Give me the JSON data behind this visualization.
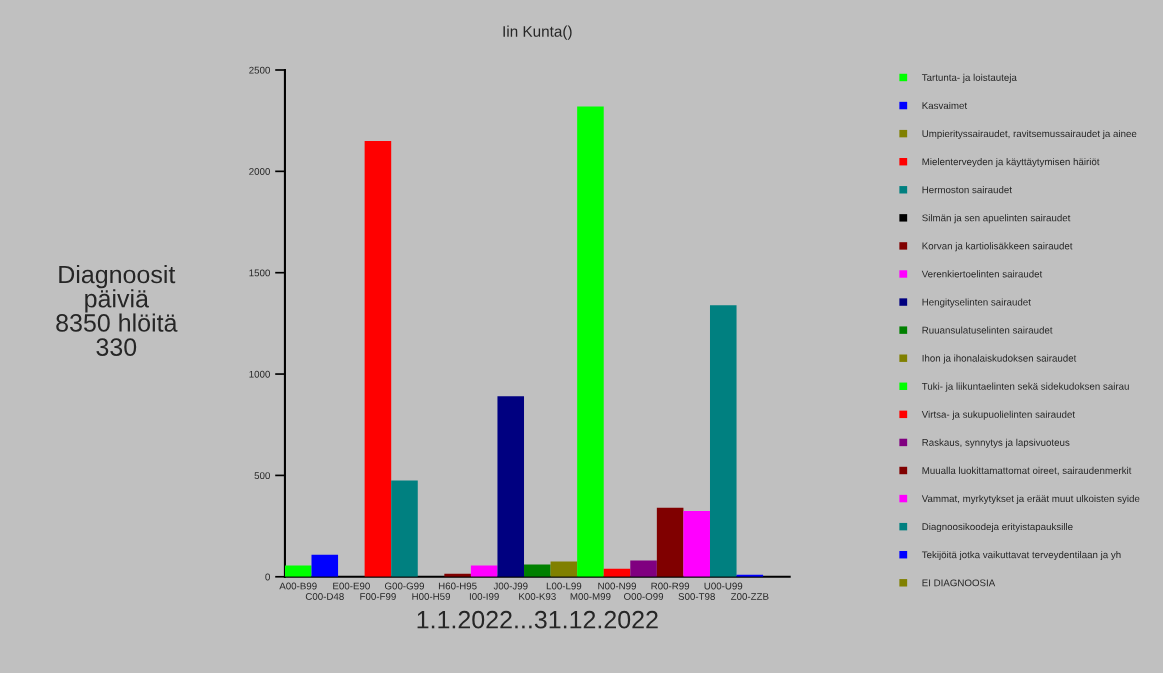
{
  "chart_data": {
    "type": "bar",
    "title": "Iin Kunta()",
    "xlabel": "1.1.2022...31.12.2022",
    "annotations": [
      "Diagnoosit\npäiviä\n8350 hlöitä\n330"
    ],
    "categories": [
      "A00-B99",
      "C00-D48",
      "E00-E90",
      "F00-F99",
      "G00-G99",
      "H00-H59",
      "H60-H95",
      "I00-I99",
      "J00-J99",
      "K00-K93",
      "L00-L99",
      "M00-M99",
      "N00-N99",
      "O00-O99",
      "R00-R99",
      "S00-T98",
      "U00-U99",
      "Z00-ZZB",
      null
    ],
    "series": [
      {
        "name": "Tartunta- ja loistauteja",
        "color": "#00ff00",
        "values": [
          55,
          null,
          null,
          null,
          null,
          null,
          null,
          null,
          null,
          null,
          null,
          null,
          null,
          null,
          null,
          null,
          null,
          null,
          null
        ]
      },
      {
        "name": "Kasvaimet",
        "color": "#0000ff",
        "values": [
          null,
          108,
          null,
          null,
          null,
          null,
          null,
          null,
          null,
          null,
          null,
          null,
          null,
          null,
          null,
          null,
          null,
          null,
          null
        ]
      },
      {
        "name": "Umpierityssairaudet, ravitsemussairaudet ja ainee",
        "color": "#808000",
        "values": [
          null,
          null,
          0,
          null,
          null,
          null,
          null,
          null,
          null,
          null,
          null,
          null,
          null,
          null,
          null,
          null,
          null,
          null,
          null
        ]
      },
      {
        "name": "Mielenterveyden ja käyttäytymisen häiriöt",
        "color": "#ff0000",
        "values": [
          null,
          null,
          null,
          2150,
          null,
          null,
          null,
          null,
          null,
          null,
          null,
          null,
          null,
          null,
          null,
          null,
          null,
          null,
          null
        ]
      },
      {
        "name": "Hermoston sairaudet",
        "color": "#008080",
        "values": [
          null,
          null,
          null,
          null,
          475,
          null,
          null,
          null,
          null,
          null,
          null,
          null,
          null,
          null,
          null,
          null,
          null,
          null,
          null
        ]
      },
      {
        "name": "Silmän ja sen apuelinten sairaudet",
        "color": "#000000",
        "values": [
          null,
          null,
          null,
          null,
          null,
          0,
          null,
          null,
          null,
          null,
          null,
          null,
          null,
          null,
          null,
          null,
          null,
          null,
          null
        ]
      },
      {
        "name": "Korvan ja kartiolisäkkeen sairaudet",
        "color": "#800000",
        "values": [
          null,
          null,
          null,
          null,
          null,
          null,
          15,
          null,
          null,
          null,
          null,
          null,
          null,
          null,
          null,
          null,
          null,
          null,
          null
        ]
      },
      {
        "name": "Verenkiertoelinten sairaudet",
        "color": "#ff00ff",
        "values": [
          null,
          null,
          null,
          null,
          null,
          null,
          null,
          55,
          null,
          null,
          null,
          null,
          null,
          null,
          null,
          null,
          null,
          null,
          null
        ]
      },
      {
        "name": "Hengityselinten sairaudet",
        "color": "#000080",
        "values": [
          null,
          null,
          null,
          null,
          null,
          null,
          null,
          null,
          890,
          null,
          null,
          null,
          null,
          null,
          null,
          null,
          null,
          null,
          null
        ]
      },
      {
        "name": "Ruuansulatuselinten sairaudet",
        "color": "#008000",
        "values": [
          null,
          null,
          null,
          null,
          null,
          null,
          null,
          null,
          null,
          60,
          null,
          null,
          null,
          null,
          null,
          null,
          null,
          null,
          null
        ]
      },
      {
        "name": "Ihon ja ihonalaiskudoksen sairaudet",
        "color": "#808000",
        "values": [
          null,
          null,
          null,
          null,
          null,
          null,
          null,
          null,
          null,
          null,
          75,
          null,
          null,
          null,
          null,
          null,
          null,
          null,
          null
        ]
      },
      {
        "name": "Tuki- ja liikuntaelinten sekä sidekudoksen sairau",
        "color": "#00ff00",
        "values": [
          null,
          null,
          null,
          null,
          null,
          null,
          null,
          null,
          null,
          null,
          null,
          2320,
          null,
          null,
          null,
          null,
          null,
          null,
          null
        ]
      },
      {
        "name": "Virtsa- ja sukupuolielinten sairaudet",
        "color": "#ff0000",
        "values": [
          null,
          null,
          null,
          null,
          null,
          null,
          null,
          null,
          null,
          null,
          null,
          null,
          40,
          null,
          null,
          null,
          null,
          null,
          null
        ]
      },
      {
        "name": "Raskaus, synnytys ja lapsivuoteus",
        "color": "#800080",
        "values": [
          null,
          null,
          null,
          null,
          null,
          null,
          null,
          null,
          null,
          null,
          null,
          null,
          null,
          80,
          null,
          null,
          null,
          null,
          null
        ]
      },
      {
        "name": "Muualla luokittamattomat oireet, sairaudenmerkit",
        "color": "#800000",
        "values": [
          null,
          null,
          null,
          null,
          null,
          null,
          null,
          null,
          null,
          null,
          null,
          null,
          null,
          null,
          340,
          null,
          null,
          null,
          null
        ]
      },
      {
        "name": "Vammat, myrkytykset ja eräät muut ulkoisten syide",
        "color": "#ff00ff",
        "values": [
          null,
          null,
          null,
          null,
          null,
          null,
          null,
          null,
          null,
          null,
          null,
          null,
          null,
          null,
          null,
          325,
          null,
          null,
          null
        ]
      },
      {
        "name": "Diagnoosikoodeja erityistapauksille",
        "color": "#008080",
        "values": [
          null,
          null,
          null,
          null,
          null,
          null,
          null,
          null,
          null,
          null,
          null,
          null,
          null,
          null,
          null,
          null,
          1340,
          null,
          null
        ]
      },
      {
        "name": "Tekijöitä jotka vaikuttavat terveydentilaan ja yh",
        "color": "#0000ff",
        "values": [
          null,
          null,
          null,
          null,
          null,
          null,
          null,
          null,
          null,
          null,
          null,
          null,
          null,
          null,
          null,
          null,
          null,
          10,
          null
        ]
      },
      {
        "name": "EI DIAGNOOSIA",
        "color": "#808000",
        "values": [
          null,
          null,
          null,
          null,
          null,
          null,
          null,
          null,
          null,
          null,
          null,
          null,
          null,
          null,
          null,
          null,
          null,
          null,
          0
        ]
      }
    ],
    "ylim": [
      0,
      2500
    ],
    "yticks": [
      0,
      500,
      1000,
      1500,
      2000,
      2500
    ],
    "grid": false,
    "legend": "right"
  }
}
